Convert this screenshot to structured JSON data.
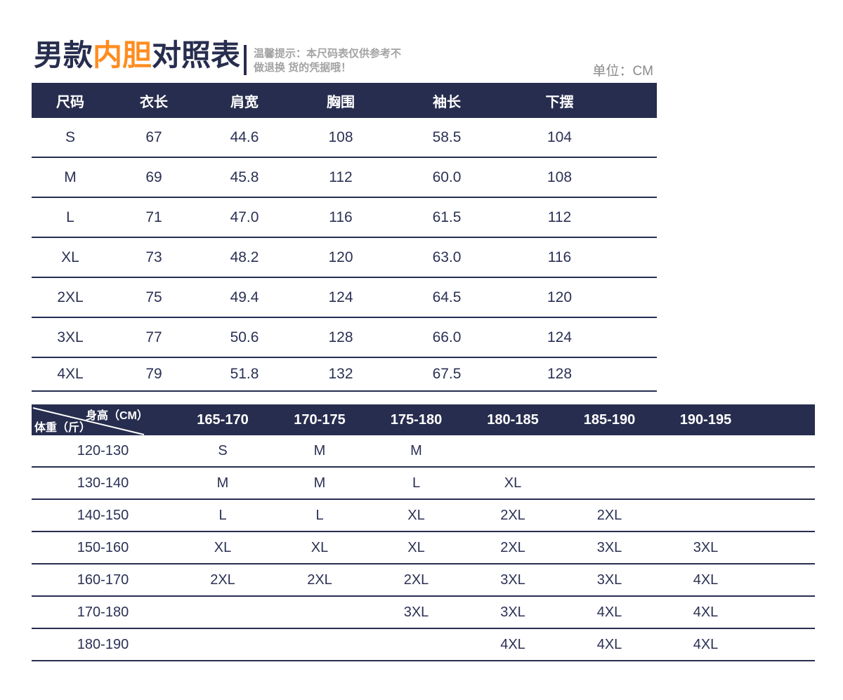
{
  "page": {
    "title_part1": "男款",
    "title_accent": "内胆",
    "title_part2": "对照表",
    "tip_line1": "温馨提示：本尺码表仅供参考不",
    "tip_line2": "做退换 货的凭据哦！",
    "unit_label": "单位：CM"
  },
  "colors": {
    "navy": "#272d4e",
    "navy_text": "#2b3154",
    "orange": "#ff8c1f",
    "tip_gray": "#a3a3a3",
    "unit_gray": "#8a8a8a"
  },
  "size_table": {
    "headers": [
      "尺码",
      "衣长",
      "肩宽",
      "胸围",
      "袖长",
      "下摆"
    ],
    "rows": [
      [
        "S",
        "67",
        "44.6",
        "108",
        "58.5",
        "104"
      ],
      [
        "M",
        "69",
        "45.8",
        "112",
        "60.0",
        "108"
      ],
      [
        "L",
        "71",
        "47.0",
        "116",
        "61.5",
        "112"
      ],
      [
        "XL",
        "73",
        "48.2",
        "120",
        "63.0",
        "116"
      ],
      [
        "2XL",
        "75",
        "49.4",
        "124",
        "64.5",
        "120"
      ],
      [
        "3XL",
        "77",
        "50.6",
        "128",
        "66.0",
        "124"
      ],
      [
        "4XL",
        "79",
        "51.8",
        "132",
        "67.5",
        "128"
      ]
    ]
  },
  "fit_table": {
    "corner_top": "身高（CM）",
    "corner_bottom": "体重（斤）",
    "height_headers": [
      "165-170",
      "170-175",
      "175-180",
      "180-185",
      "185-190",
      "190-195"
    ],
    "rows": [
      {
        "weight": "120-130",
        "sizes": [
          "S",
          "M",
          "M",
          "",
          "",
          ""
        ]
      },
      {
        "weight": "130-140",
        "sizes": [
          "M",
          "M",
          "L",
          "XL",
          "",
          ""
        ]
      },
      {
        "weight": "140-150",
        "sizes": [
          "L",
          "L",
          "XL",
          "2XL",
          "2XL",
          ""
        ]
      },
      {
        "weight": "150-160",
        "sizes": [
          "XL",
          "XL",
          "XL",
          "2XL",
          "3XL",
          "3XL"
        ]
      },
      {
        "weight": "160-170",
        "sizes": [
          "2XL",
          "2XL",
          "2XL",
          "3XL",
          "3XL",
          "4XL"
        ]
      },
      {
        "weight": "170-180",
        "sizes": [
          "",
          "",
          "3XL",
          "3XL",
          "4XL",
          "4XL"
        ]
      },
      {
        "weight": "180-190",
        "sizes": [
          "",
          "",
          "",
          "4XL",
          "4XL",
          "4XL"
        ]
      }
    ]
  }
}
